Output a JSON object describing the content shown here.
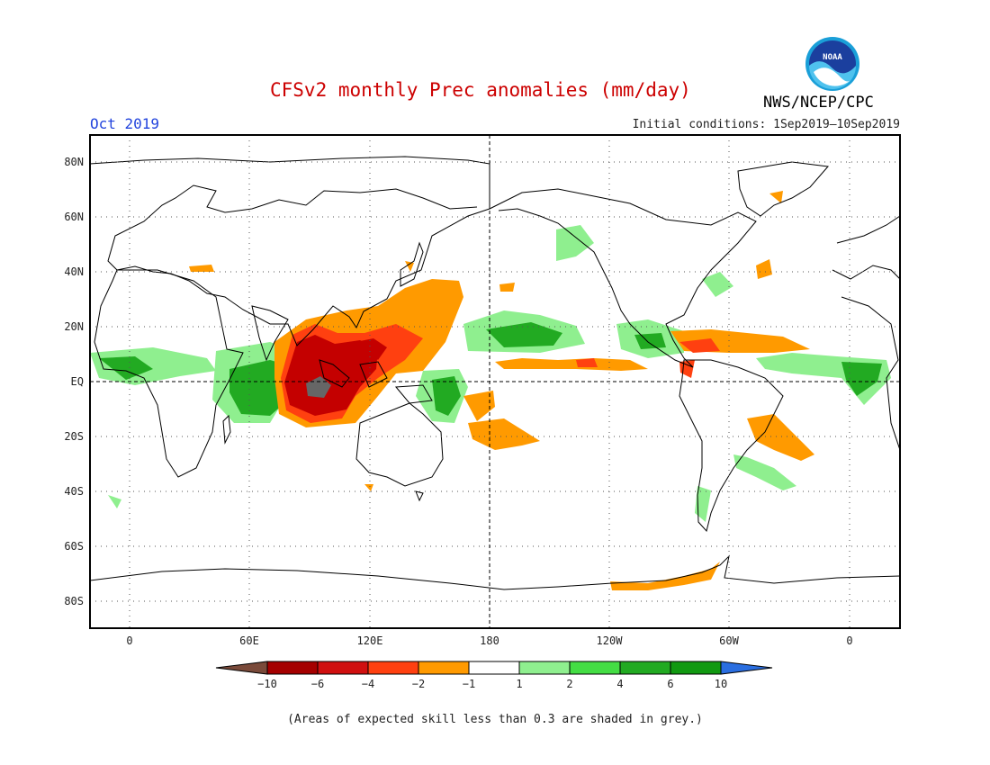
{
  "header": {
    "title": "CFSv2 monthly Prec anomalies (mm/day)",
    "month": "Oct 2019",
    "initial_conditions": "Initial conditions: 1Sep2019–10Sep2019",
    "agency": "NWS/NCEP/CPC",
    "logo_text": "NOAA"
  },
  "axes": {
    "lat_labels": [
      "80N",
      "60N",
      "40N",
      "20N",
      "EQ",
      "20S",
      "40S",
      "60S",
      "80S"
    ],
    "lon_labels": [
      "0",
      "60E",
      "120E",
      "180",
      "120W",
      "60W",
      "0"
    ]
  },
  "colorbar": {
    "labels": [
      "−10",
      "−6",
      "−4",
      "−2",
      "−1",
      "1",
      "2",
      "4",
      "6",
      "10"
    ],
    "colors": [
      "#7a4a3a",
      "#a50000",
      "#d01010",
      "#ff4010",
      "#ff9a00",
      "#ffffff",
      "#8fef8f",
      "#44dd44",
      "#22aa22",
      "#119911",
      "#2a6ee0"
    ]
  },
  "footnote": "(Areas of expected skill less than 0.3 are shaded in grey.)"
}
